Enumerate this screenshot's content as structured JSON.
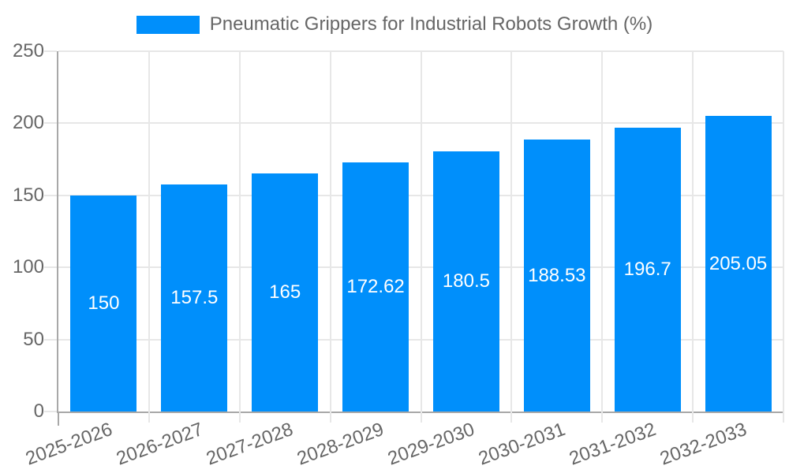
{
  "legend": {
    "label": "Pneumatic Grippers for Industrial Robots Growth (%)",
    "marker_color": "#008FFB"
  },
  "chart_data": {
    "type": "bar",
    "title": "",
    "xlabel": "",
    "ylabel": "",
    "categories": [
      "2025-2026",
      "2026-2027",
      "2027-2028",
      "2028-2029",
      "2029-2030",
      "2030-2031",
      "2031-2032",
      "2032-2033"
    ],
    "series": [
      {
        "name": "Pneumatic Grippers for Industrial Robots Growth (%)",
        "values": [
          150,
          157.5,
          165,
          172.62,
          180.5,
          188.53,
          196.7,
          205.05
        ],
        "value_labels": [
          "150",
          "157.5",
          "165",
          "172.62",
          "180.5",
          "188.53",
          "196.7",
          "205.05"
        ],
        "color": "#008FFB"
      }
    ],
    "ylim": [
      0,
      250
    ],
    "yticks": [
      0,
      50,
      100,
      150,
      200,
      250
    ],
    "grid": true,
    "legend_position": "top",
    "datalabels_position": "inside-middle"
  },
  "colors": {
    "bar": "#008FFB",
    "grid": "#e7e7e7",
    "axis_border": "#a8a8a8",
    "label_text": "#666666",
    "datalabel_text": "#ffffff",
    "background": "#ffffff"
  }
}
